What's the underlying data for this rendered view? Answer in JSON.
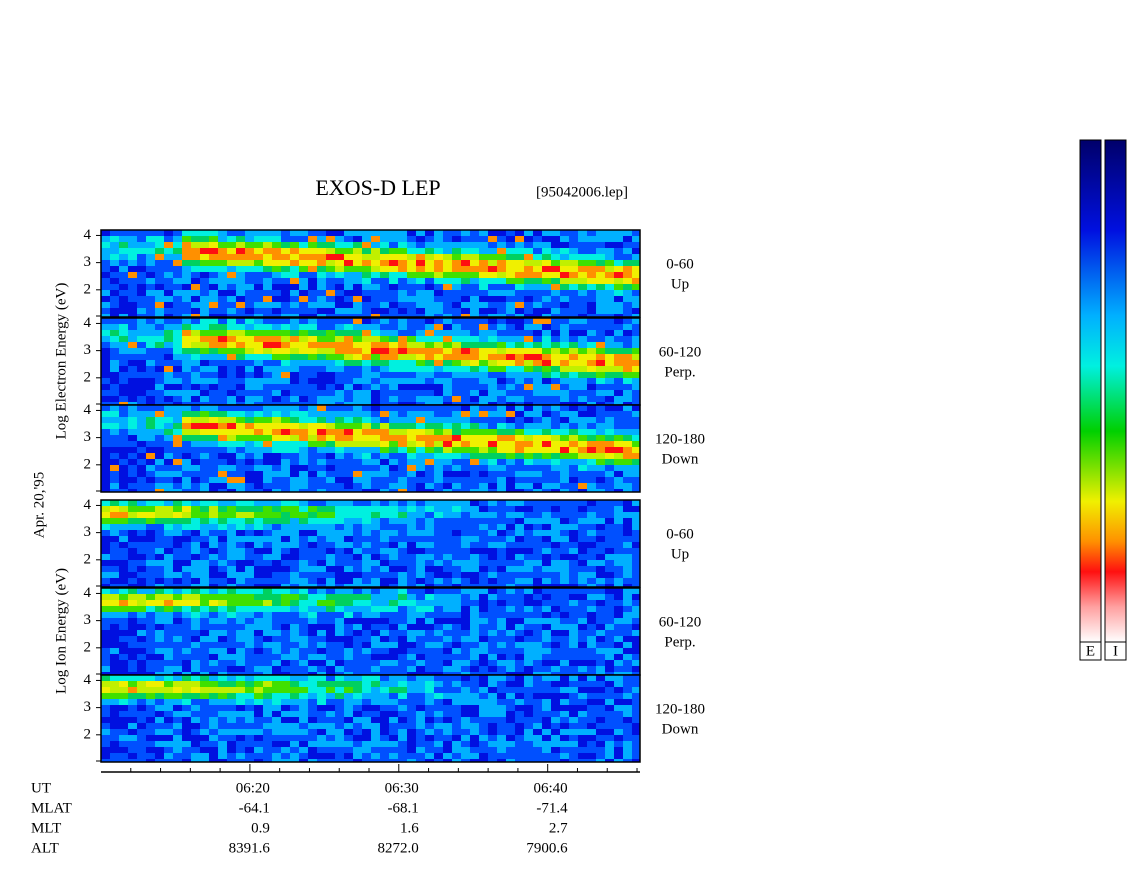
{
  "chart_data": {
    "type": "spectrogram",
    "title": "EXOS-D LEP",
    "filename": "[95042006.lep]",
    "date_label": "Apr. 20,'95",
    "xlim": [
      370,
      406.2
    ],
    "xticks": [
      {
        "value": 380,
        "label": "06:20"
      },
      {
        "value": 390,
        "label": "06:30"
      },
      {
        "value": 400,
        "label": "06:40"
      }
    ],
    "xminorticks": [
      372,
      374,
      376,
      378,
      382,
      384,
      386,
      388,
      392,
      394,
      396,
      398,
      402,
      404,
      406
    ],
    "ylim": [
      1,
      4.2
    ],
    "yticks": [
      2,
      3,
      4
    ],
    "groups": [
      {
        "label": "Log  Electron  Energy (eV)",
        "panels": [
          {
            "name": "0-60",
            "direction": "Up"
          },
          {
            "name": "60-120",
            "direction": "Perp."
          },
          {
            "name": "120-180",
            "direction": "Down"
          }
        ]
      },
      {
        "label": "Log  Ion  Energy (eV)",
        "panels": [
          {
            "name": "0-60",
            "direction": "Up"
          },
          {
            "name": "60-120",
            "direction": "Perp."
          },
          {
            "name": "120-180",
            "direction": "Down"
          }
        ]
      }
    ],
    "ephemeris": [
      {
        "name": "UT",
        "values": []
      },
      {
        "name": "MLAT",
        "values": [
          "-64.1",
          "-68.1",
          "-71.4"
        ]
      },
      {
        "name": "MLT",
        "values": [
          "0.9",
          "1.6",
          "2.7"
        ]
      },
      {
        "name": "ALT",
        "values": [
          "8391.6",
          "8272.0",
          "7900.6"
        ]
      }
    ],
    "colorbar_labels": [
      "E",
      "I"
    ]
  }
}
